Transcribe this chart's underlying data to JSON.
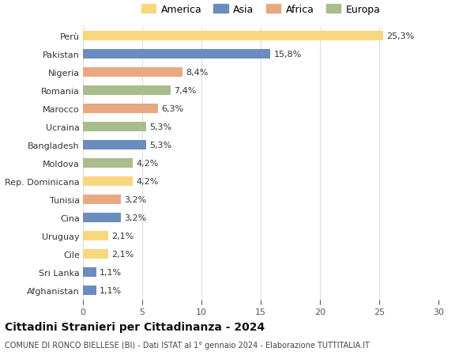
{
  "countries": [
    "Perù",
    "Pakistan",
    "Nigeria",
    "Romania",
    "Marocco",
    "Ucraina",
    "Bangladesh",
    "Moldova",
    "Rep. Dominicana",
    "Tunisia",
    "Cina",
    "Uruguay",
    "Cile",
    "Sri Lanka",
    "Afghanistan"
  ],
  "values": [
    25.3,
    15.8,
    8.4,
    7.4,
    6.3,
    5.3,
    5.3,
    4.2,
    4.2,
    3.2,
    3.2,
    2.1,
    2.1,
    1.1,
    1.1
  ],
  "labels": [
    "25,3%",
    "15,8%",
    "8,4%",
    "7,4%",
    "6,3%",
    "5,3%",
    "5,3%",
    "4,2%",
    "4,2%",
    "3,2%",
    "3,2%",
    "2,1%",
    "2,1%",
    "1,1%",
    "1,1%"
  ],
  "continents": [
    "America",
    "Asia",
    "Africa",
    "Europa",
    "Africa",
    "Europa",
    "Asia",
    "Europa",
    "America",
    "Africa",
    "Asia",
    "America",
    "America",
    "Asia",
    "Asia"
  ],
  "continent_colors": {
    "America": "#F9D77E",
    "Asia": "#6B8CBF",
    "Africa": "#E8A882",
    "Europa": "#A8BC8C"
  },
  "legend_order": [
    "America",
    "Asia",
    "Africa",
    "Europa"
  ],
  "title": "Cittadini Stranieri per Cittadinanza - 2024",
  "subtitle": "COMUNE DI RONCO BIELLESE (BI) - Dati ISTAT al 1° gennaio 2024 - Elaborazione TUTTITALIA.IT",
  "xlim": [
    0,
    30
  ],
  "xticks": [
    0,
    5,
    10,
    15,
    20,
    25,
    30
  ],
  "background_color": "#ffffff",
  "grid_color": "#dddddd",
  "label_fontsize": 8,
  "tick_fontsize": 8,
  "title_fontsize": 10,
  "subtitle_fontsize": 7,
  "bar_height": 0.55
}
